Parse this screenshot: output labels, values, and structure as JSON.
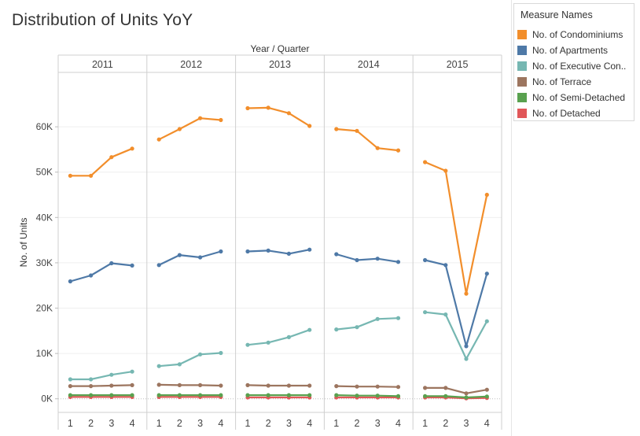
{
  "chart_data": {
    "type": "line",
    "title": "Distribution of Units YoY",
    "column_header": "Year / Quarter",
    "ylabel": "No. of Units",
    "ylim": [
      -3000,
      72000
    ],
    "yticks": [
      0,
      10000,
      20000,
      30000,
      40000,
      50000,
      60000
    ],
    "ytick_labels": [
      "0K",
      "10K",
      "20K",
      "30K",
      "40K",
      "50K",
      "60K"
    ],
    "panels": [
      "2011",
      "2012",
      "2013",
      "2014",
      "2015"
    ],
    "quarters": [
      "1",
      "2",
      "3",
      "4"
    ],
    "legend_title": "Measure Names",
    "series": [
      {
        "name": "No. of Condominiums",
        "color": "#f28e2b",
        "values": [
          49200,
          49200,
          53300,
          55200,
          57200,
          59500,
          61900,
          61500,
          64100,
          64200,
          63000,
          60200,
          59500,
          59100,
          55300,
          54800,
          52200,
          50300,
          23200,
          45000
        ]
      },
      {
        "name": "No. of Apartments",
        "color": "#4e79a7",
        "values": [
          25900,
          27200,
          29900,
          29400,
          29500,
          31700,
          31200,
          32500,
          32500,
          32700,
          32000,
          32900,
          31900,
          30600,
          30900,
          30200,
          30600,
          29500,
          11600,
          27600
        ]
      },
      {
        "name": "No. of Executive Con..",
        "color": "#76b7b2",
        "values": [
          4300,
          4300,
          5300,
          6000,
          7200,
          7600,
          9800,
          10100,
          11900,
          12400,
          13600,
          15200,
          15300,
          15800,
          17600,
          17800,
          19100,
          18600,
          8800,
          17100
        ]
      },
      {
        "name": "No. of Terrace",
        "color": "#9c755f",
        "values": [
          2800,
          2800,
          2900,
          3000,
          3100,
          3000,
          3000,
          2900,
          3000,
          2900,
          2900,
          2900,
          2800,
          2700,
          2700,
          2600,
          2400,
          2400,
          1200,
          2000
        ]
      },
      {
        "name": "No. of Semi-Detached",
        "color": "#59a14f",
        "values": [
          800,
          800,
          800,
          800,
          800,
          800,
          800,
          800,
          800,
          800,
          800,
          800,
          800,
          700,
          700,
          600,
          600,
          600,
          300,
          500
        ]
      },
      {
        "name": "No. of Detached",
        "color": "#e15759",
        "values": [
          400,
          400,
          400,
          400,
          400,
          400,
          400,
          400,
          300,
          300,
          300,
          300,
          300,
          300,
          300,
          300,
          300,
          300,
          100,
          200
        ]
      }
    ]
  }
}
